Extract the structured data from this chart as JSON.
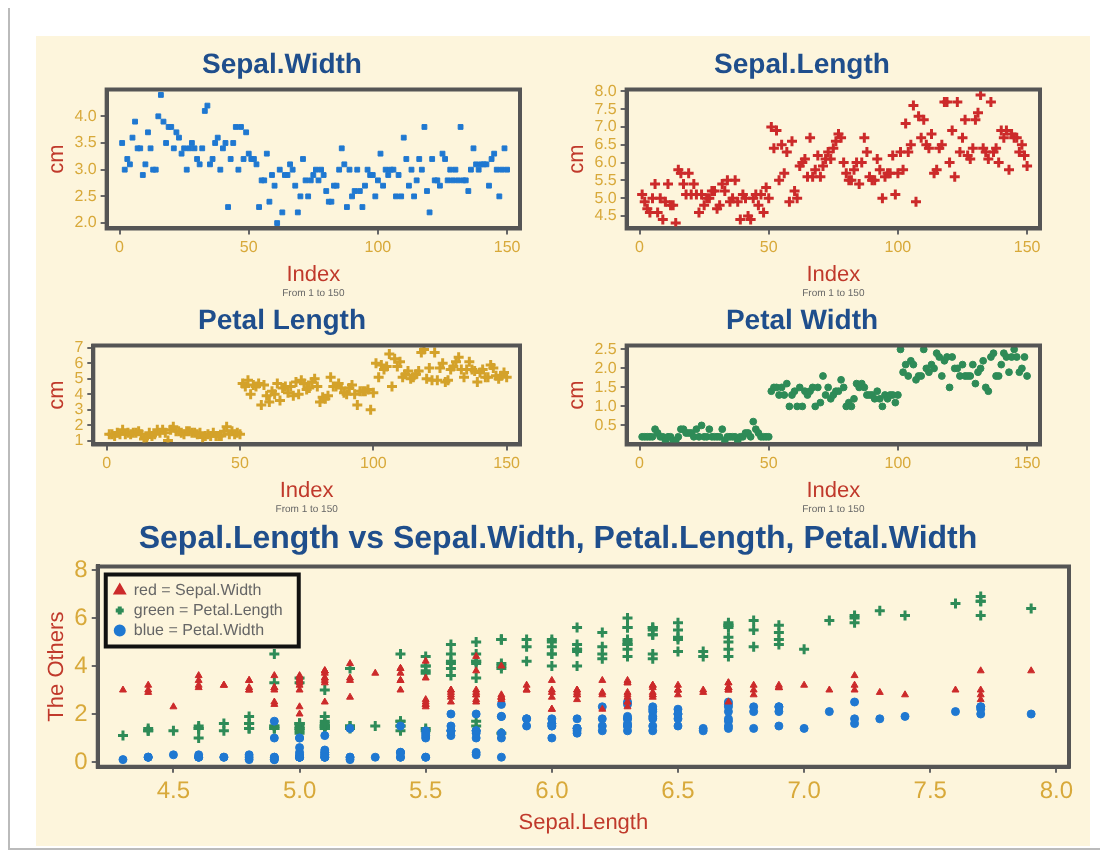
{
  "chart_data": [
    {
      "type": "scatter",
      "title": "Sepal.Width",
      "xlabel": "Index",
      "ylabel": "cm",
      "annotations": [
        "From 1 to 150"
      ],
      "marker": "square",
      "legend": false,
      "grid": false,
      "xlim": [
        -5,
        155
      ],
      "xticks": [
        0,
        50,
        100,
        150
      ],
      "ylim": [
        1.9,
        4.5
      ],
      "yticks": [
        {
          "value": 2,
          "label": "2.0"
        },
        {
          "value": 2.5,
          "label": "2.5"
        },
        {
          "value": 3,
          "label": "3.0"
        },
        {
          "value": 3.5,
          "label": "3.5"
        },
        {
          "value": 4,
          "label": "4.0"
        }
      ],
      "x": [
        1,
        2,
        3,
        4,
        5,
        6,
        7,
        8,
        9,
        10,
        11,
        12,
        13,
        14,
        15,
        16,
        17,
        18,
        19,
        20,
        21,
        22,
        23,
        24,
        25,
        26,
        27,
        28,
        29,
        30,
        31,
        32,
        33,
        34,
        35,
        36,
        37,
        38,
        39,
        40,
        41,
        42,
        43,
        44,
        45,
        46,
        47,
        48,
        49,
        50,
        51,
        52,
        53,
        54,
        55,
        56,
        57,
        58,
        59,
        60,
        61,
        62,
        63,
        64,
        65,
        66,
        67,
        68,
        69,
        70,
        71,
        72,
        73,
        74,
        75,
        76,
        77,
        78,
        79,
        80,
        81,
        82,
        83,
        84,
        85,
        86,
        87,
        88,
        89,
        90,
        91,
        92,
        93,
        94,
        95,
        96,
        97,
        98,
        99,
        100,
        101,
        102,
        103,
        104,
        105,
        106,
        107,
        108,
        109,
        110,
        111,
        112,
        113,
        114,
        115,
        116,
        117,
        118,
        119,
        120,
        121,
        122,
        123,
        124,
        125,
        126,
        127,
        128,
        129,
        130,
        131,
        132,
        133,
        134,
        135,
        136,
        137,
        138,
        139,
        140,
        141,
        142,
        143,
        144,
        145,
        146,
        147,
        148,
        149,
        150
      ],
      "series": [
        {
          "color": "#1f78d1",
          "values": [
            3.5,
            3.0,
            3.2,
            3.1,
            3.6,
            3.9,
            3.4,
            3.4,
            2.9,
            3.1,
            3.7,
            3.4,
            3.0,
            3.0,
            4.0,
            4.4,
            3.9,
            3.5,
            3.8,
            3.8,
            3.4,
            3.7,
            3.6,
            3.3,
            3.4,
            3.0,
            3.4,
            3.5,
            3.4,
            3.2,
            3.1,
            3.4,
            4.1,
            4.2,
            3.1,
            3.2,
            3.5,
            3.6,
            3.0,
            3.4,
            3.5,
            2.3,
            3.2,
            3.5,
            3.8,
            3.0,
            3.8,
            3.2,
            3.7,
            3.3,
            3.2,
            3.2,
            3.1,
            2.3,
            2.8,
            2.8,
            3.3,
            2.4,
            2.9,
            2.7,
            2.0,
            3.0,
            2.2,
            2.9,
            2.9,
            3.1,
            3.0,
            2.7,
            2.2,
            2.5,
            3.2,
            2.8,
            2.5,
            2.8,
            2.9,
            3.0,
            2.8,
            3.0,
            2.9,
            2.6,
            2.4,
            2.4,
            2.7,
            2.7,
            3.0,
            3.4,
            3.1,
            2.3,
            3.0,
            2.5,
            2.6,
            3.0,
            2.6,
            2.3,
            2.7,
            3.0,
            2.9,
            2.9,
            2.5,
            2.8,
            3.3,
            2.7,
            3.0,
            2.9,
            3.0,
            3.0,
            2.5,
            2.9,
            2.5,
            3.6,
            3.2,
            2.7,
            3.0,
            2.5,
            2.8,
            3.2,
            3.0,
            3.8,
            2.6,
            2.2,
            3.2,
            2.8,
            2.8,
            2.7,
            3.3,
            3.2,
            2.8,
            3.0,
            2.8,
            3.0,
            2.8,
            3.8,
            2.8,
            2.8,
            2.6,
            3.0,
            3.4,
            3.1,
            3.0,
            3.1,
            3.1,
            3.1,
            2.7,
            3.2,
            3.3,
            3.0,
            2.5,
            3.0,
            3.4,
            3.0
          ]
        }
      ]
    },
    {
      "type": "scatter",
      "title": "Sepal.Length",
      "xlabel": "Index",
      "ylabel": "cm",
      "annotations": [
        "From 1 to 150"
      ],
      "marker": "cross",
      "legend": false,
      "grid": false,
      "xlim": [
        -5,
        155
      ],
      "xticks": [
        0,
        50,
        100,
        150
      ],
      "ylim": [
        4.15,
        8.05
      ],
      "yticks": [
        {
          "value": 4.5,
          "label": "4.5"
        },
        {
          "value": 5,
          "label": "5.0"
        },
        {
          "value": 5.5,
          "label": "5.5"
        },
        {
          "value": 6,
          "label": "6.0"
        },
        {
          "value": 6.5,
          "label": "6.5"
        },
        {
          "value": 7,
          "label": "7.0"
        },
        {
          "value": 7.5,
          "label": "7.5"
        },
        {
          "value": 8,
          "label": "8.0"
        }
      ],
      "x": [
        1,
        2,
        3,
        4,
        5,
        6,
        7,
        8,
        9,
        10,
        11,
        12,
        13,
        14,
        15,
        16,
        17,
        18,
        19,
        20,
        21,
        22,
        23,
        24,
        25,
        26,
        27,
        28,
        29,
        30,
        31,
        32,
        33,
        34,
        35,
        36,
        37,
        38,
        39,
        40,
        41,
        42,
        43,
        44,
        45,
        46,
        47,
        48,
        49,
        50,
        51,
        52,
        53,
        54,
        55,
        56,
        57,
        58,
        59,
        60,
        61,
        62,
        63,
        64,
        65,
        66,
        67,
        68,
        69,
        70,
        71,
        72,
        73,
        74,
        75,
        76,
        77,
        78,
        79,
        80,
        81,
        82,
        83,
        84,
        85,
        86,
        87,
        88,
        89,
        90,
        91,
        92,
        93,
        94,
        95,
        96,
        97,
        98,
        99,
        100,
        101,
        102,
        103,
        104,
        105,
        106,
        107,
        108,
        109,
        110,
        111,
        112,
        113,
        114,
        115,
        116,
        117,
        118,
        119,
        120,
        121,
        122,
        123,
        124,
        125,
        126,
        127,
        128,
        129,
        130,
        131,
        132,
        133,
        134,
        135,
        136,
        137,
        138,
        139,
        140,
        141,
        142,
        143,
        144,
        145,
        146,
        147,
        148,
        149,
        150
      ],
      "series": [
        {
          "color": "#cc2a2a",
          "values": [
            5.1,
            4.9,
            4.7,
            4.6,
            5.0,
            5.4,
            4.6,
            5.0,
            4.4,
            4.9,
            5.4,
            4.8,
            4.8,
            4.3,
            5.8,
            5.7,
            5.4,
            5.1,
            5.7,
            5.1,
            5.4,
            5.1,
            4.6,
            5.1,
            4.8,
            5.0,
            5.0,
            5.2,
            5.2,
            4.7,
            4.8,
            5.4,
            5.2,
            5.5,
            4.9,
            5.0,
            5.5,
            4.9,
            4.4,
            5.1,
            5.0,
            4.5,
            4.4,
            5.0,
            5.1,
            4.8,
            5.1,
            4.6,
            5.3,
            5.0,
            7.0,
            6.4,
            6.9,
            5.5,
            6.5,
            5.7,
            6.3,
            4.9,
            6.6,
            5.2,
            5.0,
            5.9,
            6.0,
            6.1,
            5.6,
            6.7,
            5.6,
            5.8,
            6.2,
            5.6,
            5.9,
            6.1,
            6.3,
            6.1,
            6.4,
            6.6,
            6.8,
            6.7,
            6.0,
            5.7,
            5.5,
            5.5,
            5.8,
            6.0,
            5.4,
            6.0,
            6.7,
            6.3,
            5.6,
            5.5,
            5.5,
            6.1,
            5.8,
            5.0,
            5.6,
            5.7,
            5.7,
            6.2,
            5.1,
            5.7,
            6.3,
            5.8,
            7.1,
            6.3,
            6.5,
            7.6,
            4.9,
            7.3,
            6.7,
            7.2,
            6.5,
            6.4,
            6.8,
            5.7,
            5.8,
            6.4,
            6.5,
            7.7,
            7.7,
            6.0,
            6.9,
            5.6,
            7.7,
            6.3,
            6.7,
            7.2,
            6.2,
            6.1,
            6.4,
            7.2,
            7.4,
            7.9,
            6.4,
            6.3,
            6.1,
            7.7,
            6.3,
            6.4,
            6.0,
            6.9,
            6.7,
            6.9,
            5.8,
            6.8,
            6.7,
            6.7,
            6.3,
            6.5,
            6.2,
            5.9
          ]
        }
      ]
    },
    {
      "type": "scatter",
      "title": "Petal Length",
      "xlabel": "Index",
      "ylabel": "cm",
      "annotations": [
        "From 1 to 150"
      ],
      "marker": "cross",
      "legend": false,
      "grid": false,
      "xlim": [
        -5,
        155
      ],
      "xticks": [
        0,
        50,
        100,
        150
      ],
      "ylim": [
        0.75,
        7.15
      ],
      "yticks": [
        1,
        2,
        3,
        4,
        5,
        6,
        7
      ],
      "x": [
        1,
        2,
        3,
        4,
        5,
        6,
        7,
        8,
        9,
        10,
        11,
        12,
        13,
        14,
        15,
        16,
        17,
        18,
        19,
        20,
        21,
        22,
        23,
        24,
        25,
        26,
        27,
        28,
        29,
        30,
        31,
        32,
        33,
        34,
        35,
        36,
        37,
        38,
        39,
        40,
        41,
        42,
        43,
        44,
        45,
        46,
        47,
        48,
        49,
        50,
        51,
        52,
        53,
        54,
        55,
        56,
        57,
        58,
        59,
        60,
        61,
        62,
        63,
        64,
        65,
        66,
        67,
        68,
        69,
        70,
        71,
        72,
        73,
        74,
        75,
        76,
        77,
        78,
        79,
        80,
        81,
        82,
        83,
        84,
        85,
        86,
        87,
        88,
        89,
        90,
        91,
        92,
        93,
        94,
        95,
        96,
        97,
        98,
        99,
        100,
        101,
        102,
        103,
        104,
        105,
        106,
        107,
        108,
        109,
        110,
        111,
        112,
        113,
        114,
        115,
        116,
        117,
        118,
        119,
        120,
        121,
        122,
        123,
        124,
        125,
        126,
        127,
        128,
        129,
        130,
        131,
        132,
        133,
        134,
        135,
        136,
        137,
        138,
        139,
        140,
        141,
        142,
        143,
        144,
        145,
        146,
        147,
        148,
        149,
        150
      ],
      "series": [
        {
          "color": "#d4a22a",
          "values": [
            1.4,
            1.4,
            1.3,
            1.5,
            1.4,
            1.7,
            1.4,
            1.5,
            1.4,
            1.5,
            1.5,
            1.6,
            1.4,
            1.1,
            1.2,
            1.5,
            1.3,
            1.4,
            1.7,
            1.5,
            1.7,
            1.5,
            1.0,
            1.7,
            1.9,
            1.6,
            1.6,
            1.5,
            1.4,
            1.6,
            1.6,
            1.5,
            1.5,
            1.4,
            1.5,
            1.2,
            1.3,
            1.4,
            1.3,
            1.5,
            1.3,
            1.3,
            1.3,
            1.6,
            1.9,
            1.4,
            1.6,
            1.4,
            1.5,
            1.4,
            4.7,
            4.5,
            4.9,
            4.0,
            4.6,
            4.5,
            4.7,
            3.3,
            4.6,
            3.9,
            3.5,
            4.2,
            4.0,
            4.7,
            3.6,
            4.4,
            4.5,
            4.1,
            4.5,
            3.9,
            4.8,
            4.0,
            4.9,
            4.7,
            4.3,
            4.4,
            4.8,
            5.0,
            4.5,
            3.5,
            3.8,
            3.7,
            3.9,
            5.1,
            4.5,
            4.5,
            4.7,
            4.4,
            4.1,
            4.0,
            4.4,
            4.6,
            4.0,
            3.3,
            4.2,
            4.2,
            4.2,
            4.3,
            3.0,
            4.1,
            6.0,
            5.1,
            5.9,
            5.6,
            5.8,
            6.6,
            4.5,
            6.3,
            5.8,
            6.1,
            5.1,
            5.3,
            5.5,
            5.0,
            5.1,
            5.3,
            5.5,
            6.7,
            6.9,
            5.0,
            5.7,
            4.9,
            6.7,
            4.9,
            5.7,
            6.0,
            4.8,
            4.9,
            5.6,
            5.8,
            6.1,
            6.4,
            5.6,
            5.1,
            5.6,
            6.1,
            5.6,
            5.5,
            4.8,
            5.4,
            5.6,
            5.1,
            5.1,
            5.9,
            5.7,
            5.2,
            5.0,
            5.2,
            5.4,
            5.1
          ]
        }
      ]
    },
    {
      "type": "scatter",
      "title": "Petal Width",
      "xlabel": "Index",
      "ylabel": "cm",
      "annotations": [
        "From 1 to 150"
      ],
      "marker": "circle",
      "legend": false,
      "grid": false,
      "xlim": [
        -5,
        155
      ],
      "xticks": [
        0,
        50,
        100,
        150
      ],
      "ylim": [
        0,
        2.6
      ],
      "yticks": [
        {
          "value": 0.5,
          "label": "0.5"
        },
        {
          "value": 1,
          "label": "1.0"
        },
        {
          "value": 1.5,
          "label": "1.5"
        },
        {
          "value": 2,
          "label": "2.0"
        },
        {
          "value": 2.5,
          "label": "2.5"
        }
      ],
      "x": [
        1,
        2,
        3,
        4,
        5,
        6,
        7,
        8,
        9,
        10,
        11,
        12,
        13,
        14,
        15,
        16,
        17,
        18,
        19,
        20,
        21,
        22,
        23,
        24,
        25,
        26,
        27,
        28,
        29,
        30,
        31,
        32,
        33,
        34,
        35,
        36,
        37,
        38,
        39,
        40,
        41,
        42,
        43,
        44,
        45,
        46,
        47,
        48,
        49,
        50,
        51,
        52,
        53,
        54,
        55,
        56,
        57,
        58,
        59,
        60,
        61,
        62,
        63,
        64,
        65,
        66,
        67,
        68,
        69,
        70,
        71,
        72,
        73,
        74,
        75,
        76,
        77,
        78,
        79,
        80,
        81,
        82,
        83,
        84,
        85,
        86,
        87,
        88,
        89,
        90,
        91,
        92,
        93,
        94,
        95,
        96,
        97,
        98,
        99,
        100,
        101,
        102,
        103,
        104,
        105,
        106,
        107,
        108,
        109,
        110,
        111,
        112,
        113,
        114,
        115,
        116,
        117,
        118,
        119,
        120,
        121,
        122,
        123,
        124,
        125,
        126,
        127,
        128,
        129,
        130,
        131,
        132,
        133,
        134,
        135,
        136,
        137,
        138,
        139,
        140,
        141,
        142,
        143,
        144,
        145,
        146,
        147,
        148,
        149,
        150
      ],
      "series": [
        {
          "color": "#2e8b57",
          "values": [
            0.2,
            0.2,
            0.2,
            0.2,
            0.2,
            0.4,
            0.3,
            0.2,
            0.2,
            0.1,
            0.2,
            0.2,
            0.1,
            0.1,
            0.2,
            0.4,
            0.4,
            0.3,
            0.3,
            0.3,
            0.2,
            0.4,
            0.2,
            0.5,
            0.2,
            0.2,
            0.4,
            0.2,
            0.2,
            0.2,
            0.2,
            0.4,
            0.1,
            0.2,
            0.2,
            0.2,
            0.2,
            0.1,
            0.2,
            0.2,
            0.3,
            0.3,
            0.2,
            0.6,
            0.4,
            0.3,
            0.2,
            0.2,
            0.2,
            0.2,
            1.4,
            1.5,
            1.5,
            1.3,
            1.5,
            1.3,
            1.6,
            1.0,
            1.3,
            1.4,
            1.0,
            1.5,
            1.0,
            1.4,
            1.3,
            1.4,
            1.5,
            1.0,
            1.5,
            1.1,
            1.8,
            1.3,
            1.5,
            1.2,
            1.3,
            1.4,
            1.4,
            1.7,
            1.5,
            1.0,
            1.1,
            1.0,
            1.2,
            1.6,
            1.5,
            1.6,
            1.5,
            1.3,
            1.3,
            1.3,
            1.2,
            1.4,
            1.2,
            1.0,
            1.3,
            1.2,
            1.3,
            1.3,
            1.1,
            1.3,
            2.5,
            1.9,
            2.1,
            1.8,
            2.2,
            2.1,
            1.7,
            1.8,
            1.8,
            2.5,
            2.0,
            1.9,
            2.1,
            2.0,
            2.4,
            2.3,
            1.8,
            2.2,
            2.3,
            1.5,
            2.3,
            2.0,
            2.0,
            1.8,
            2.1,
            1.8,
            1.8,
            1.8,
            2.1,
            1.6,
            1.9,
            2.0,
            2.2,
            1.5,
            1.4,
            2.3,
            2.4,
            1.8,
            1.8,
            2.1,
            2.4,
            2.3,
            1.9,
            2.3,
            2.5,
            2.3,
            1.9,
            2.0,
            2.3,
            1.8
          ]
        }
      ]
    },
    {
      "type": "scatter",
      "title": "Sepal.Length vs Sepal.Width, Petal.Length, Petal.Width",
      "xlabel": "Sepal.Length",
      "ylabel": "The Others",
      "legend": "top left",
      "grid": false,
      "xlim": [
        4.2,
        8.05
      ],
      "xticks": [
        {
          "value": 4.5,
          "label": "4.5"
        },
        {
          "value": 5,
          "label": "5.0"
        },
        {
          "value": 5.5,
          "label": "5.5"
        },
        {
          "value": 6,
          "label": "6.0"
        },
        {
          "value": 6.5,
          "label": "6.5"
        },
        {
          "value": 7,
          "label": "7.0"
        },
        {
          "value": 7.5,
          "label": "7.5"
        },
        {
          "value": 8,
          "label": "8.0"
        }
      ],
      "ylim": [
        -0.2,
        8.15
      ],
      "yticks": [
        0,
        2,
        4,
        6,
        8
      ],
      "x": [
        5.1,
        4.9,
        4.7,
        4.6,
        5.0,
        5.4,
        4.6,
        5.0,
        4.4,
        4.9,
        5.4,
        4.8,
        4.8,
        4.3,
        5.8,
        5.7,
        5.4,
        5.1,
        5.7,
        5.1,
        5.4,
        5.1,
        4.6,
        5.1,
        4.8,
        5.0,
        5.0,
        5.2,
        5.2,
        4.7,
        4.8,
        5.4,
        5.2,
        5.5,
        4.9,
        5.0,
        5.5,
        4.9,
        4.4,
        5.1,
        5.0,
        4.5,
        4.4,
        5.0,
        5.1,
        4.8,
        5.1,
        4.6,
        5.3,
        5.0,
        7.0,
        6.4,
        6.9,
        5.5,
        6.5,
        5.7,
        6.3,
        4.9,
        6.6,
        5.2,
        5.0,
        5.9,
        6.0,
        6.1,
        5.6,
        6.7,
        5.6,
        5.8,
        6.2,
        5.6,
        5.9,
        6.1,
        6.3,
        6.1,
        6.4,
        6.6,
        6.8,
        6.7,
        6.0,
        5.7,
        5.5,
        5.5,
        5.8,
        6.0,
        5.4,
        6.0,
        6.7,
        6.3,
        5.6,
        5.5,
        5.5,
        6.1,
        5.8,
        5.0,
        5.6,
        5.7,
        5.7,
        6.2,
        5.1,
        5.7,
        6.3,
        5.8,
        7.1,
        6.3,
        6.5,
        7.6,
        4.9,
        7.3,
        6.7,
        7.2,
        6.5,
        6.4,
        6.8,
        5.7,
        5.8,
        6.4,
        6.5,
        7.7,
        7.7,
        6.0,
        6.9,
        5.6,
        7.7,
        6.3,
        6.7,
        7.2,
        6.2,
        6.1,
        6.4,
        7.2,
        7.4,
        7.9,
        6.4,
        6.3,
        6.1,
        7.7,
        6.3,
        6.4,
        6.0,
        6.9,
        6.7,
        6.9,
        5.8,
        6.8,
        6.7,
        6.7,
        6.3,
        6.5,
        6.2,
        5.9
      ],
      "series": [
        {
          "name": "red = Sepal.Width",
          "color": "#cc2a2a",
          "marker": "triangle",
          "values": [
            3.5,
            3.0,
            3.2,
            3.1,
            3.6,
            3.9,
            3.4,
            3.4,
            2.9,
            3.1,
            3.7,
            3.4,
            3.0,
            3.0,
            4.0,
            4.4,
            3.9,
            3.5,
            3.8,
            3.8,
            3.4,
            3.7,
            3.6,
            3.3,
            3.4,
            3.0,
            3.4,
            3.5,
            3.4,
            3.2,
            3.1,
            3.4,
            4.1,
            4.2,
            3.1,
            3.2,
            3.5,
            3.6,
            3.0,
            3.4,
            3.5,
            2.3,
            3.2,
            3.5,
            3.8,
            3.0,
            3.8,
            3.2,
            3.7,
            3.3,
            3.2,
            3.2,
            3.1,
            2.3,
            2.8,
            2.8,
            3.3,
            2.4,
            2.9,
            2.7,
            2.0,
            3.0,
            2.2,
            2.9,
            2.9,
            3.1,
            3.0,
            2.7,
            2.2,
            2.5,
            3.2,
            2.8,
            2.5,
            2.8,
            2.9,
            3.0,
            2.8,
            3.0,
            2.9,
            2.6,
            2.4,
            2.4,
            2.7,
            2.7,
            3.0,
            3.4,
            3.1,
            2.3,
            3.0,
            2.5,
            2.6,
            3.0,
            2.6,
            2.3,
            2.7,
            3.0,
            2.9,
            2.9,
            2.5,
            2.8,
            3.3,
            2.7,
            3.0,
            2.9,
            3.0,
            3.0,
            2.5,
            2.9,
            2.5,
            3.6,
            3.2,
            2.7,
            3.0,
            2.5,
            2.8,
            3.2,
            3.0,
            3.8,
            2.6,
            2.2,
            3.2,
            2.8,
            2.8,
            2.7,
            3.3,
            3.2,
            2.8,
            3.0,
            2.8,
            3.0,
            2.8,
            3.8,
            2.8,
            2.8,
            2.6,
            3.0,
            3.4,
            3.1,
            3.0,
            3.1,
            3.1,
            3.1,
            2.7,
            3.2,
            3.3,
            3.0,
            2.5,
            3.0,
            3.4,
            3.0
          ]
        },
        {
          "name": "green = Petal.Length",
          "color": "#2e8b57",
          "marker": "cross",
          "values": [
            1.4,
            1.4,
            1.3,
            1.5,
            1.4,
            1.7,
            1.4,
            1.5,
            1.4,
            1.5,
            1.5,
            1.6,
            1.4,
            1.1,
            1.2,
            1.5,
            1.3,
            1.4,
            1.7,
            1.5,
            1.7,
            1.5,
            1.0,
            1.7,
            1.9,
            1.6,
            1.6,
            1.5,
            1.4,
            1.6,
            1.6,
            1.5,
            1.5,
            1.4,
            1.5,
            1.2,
            1.3,
            1.4,
            1.3,
            1.5,
            1.3,
            1.3,
            1.3,
            1.6,
            1.9,
            1.4,
            1.6,
            1.4,
            1.5,
            1.4,
            4.7,
            4.5,
            4.9,
            4.0,
            4.6,
            4.5,
            4.7,
            3.3,
            4.6,
            3.9,
            3.5,
            4.2,
            4.0,
            4.7,
            3.6,
            4.4,
            4.5,
            4.1,
            4.5,
            3.9,
            4.8,
            4.0,
            4.9,
            4.7,
            4.3,
            4.4,
            4.8,
            5.0,
            4.5,
            3.5,
            3.8,
            3.7,
            3.9,
            5.1,
            4.5,
            4.5,
            4.7,
            4.4,
            4.1,
            4.0,
            4.4,
            4.6,
            4.0,
            3.3,
            4.2,
            4.2,
            4.2,
            4.3,
            3.0,
            4.1,
            6.0,
            5.1,
            5.9,
            5.6,
            5.8,
            6.6,
            4.5,
            6.3,
            5.8,
            6.1,
            5.1,
            5.3,
            5.5,
            5.0,
            5.1,
            5.3,
            5.5,
            6.7,
            6.9,
            5.0,
            5.7,
            4.9,
            6.7,
            4.9,
            5.7,
            6.0,
            4.8,
            4.9,
            5.6,
            5.8,
            6.1,
            6.4,
            5.6,
            5.1,
            5.6,
            6.1,
            5.6,
            5.5,
            4.8,
            5.4,
            5.6,
            5.1,
            5.1,
            5.9,
            5.7,
            5.2,
            5.0,
            5.2,
            5.4,
            5.1
          ]
        },
        {
          "name": "blue = Petal.Width",
          "color": "#1f78d1",
          "marker": "circle",
          "values": [
            0.2,
            0.2,
            0.2,
            0.2,
            0.2,
            0.4,
            0.3,
            0.2,
            0.2,
            0.1,
            0.2,
            0.2,
            0.1,
            0.1,
            0.2,
            0.4,
            0.4,
            0.3,
            0.3,
            0.3,
            0.2,
            0.4,
            0.2,
            0.5,
            null,
            0.2,
            0.4,
            0.2,
            0.2,
            0.2,
            null,
            0.4,
            0.1,
            0.2,
            0.2,
            0.2,
            0.2,
            0.1,
            0.2,
            0.2,
            0.3,
            0.3,
            0.2,
            0.6,
            0.4,
            0.3,
            0.2,
            0.2,
            0.2,
            0.2,
            1.4,
            1.5,
            1.5,
            1.3,
            1.5,
            1.3,
            1.6,
            1.0,
            1.3,
            1.4,
            1.0,
            1.5,
            1.0,
            1.4,
            1.3,
            1.4,
            1.5,
            1.0,
            1.5,
            1.1,
            1.8,
            1.3,
            1.5,
            1.2,
            1.3,
            1.4,
            1.4,
            1.7,
            1.5,
            1.0,
            1.1,
            1.0,
            1.2,
            1.6,
            1.5,
            1.6,
            1.5,
            1.3,
            1.3,
            null,
            1.2,
            1.4,
            1.2,
            1.0,
            1.3,
            1.2,
            1.3,
            1.3,
            1.1,
            1.3,
            2.5,
            1.9,
            2.1,
            1.8,
            2.2,
            2.1,
            1.7,
            1.8,
            1.8,
            2.5,
            2.0,
            1.9,
            2.1,
            2.0,
            2.4,
            2.3,
            1.8,
            2.2,
            2.3,
            1.5,
            2.3,
            2.0,
            2.0,
            1.8,
            2.1,
            1.8,
            1.8,
            1.8,
            2.1,
            1.6,
            1.9,
            2.0,
            2.2,
            1.5,
            1.4,
            2.3,
            2.4,
            1.8,
            1.8,
            2.1,
            2.4,
            2.3,
            1.9,
            2.3,
            2.5,
            2.3,
            1.9,
            2.0,
            2.3,
            1.8
          ]
        }
      ]
    }
  ]
}
